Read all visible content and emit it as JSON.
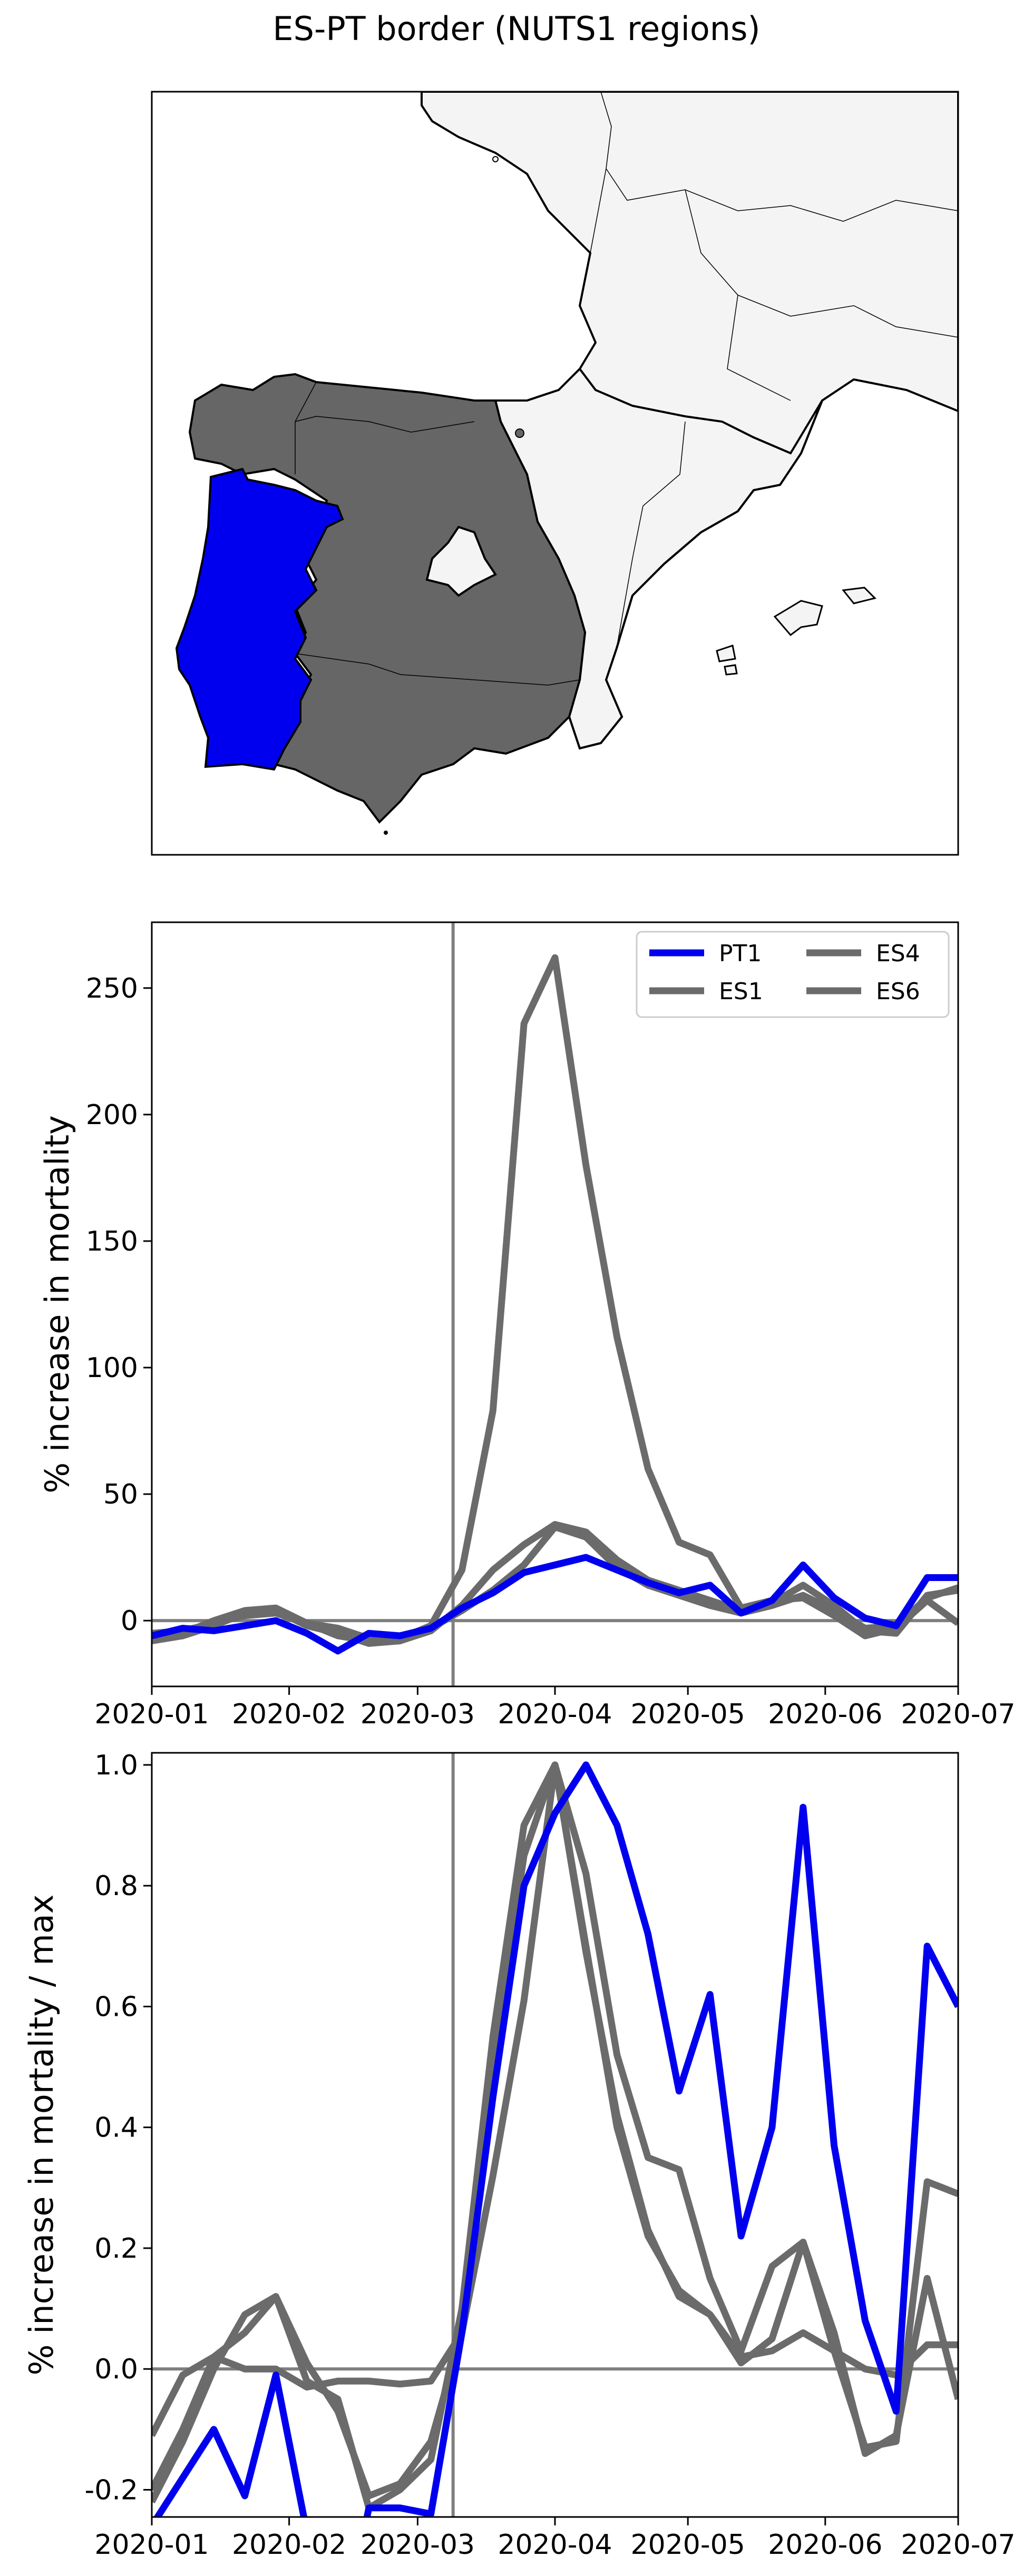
{
  "title": "ES-PT border (NUTS1 regions)",
  "colors": {
    "PT1": "#0000ee",
    "ES": "#6b6b6b",
    "land": "#f4f4f4",
    "border": "#000000"
  },
  "map": {
    "highlighted_regions": [
      "PT1"
    ],
    "comparison_regions": [
      "ES1",
      "ES4",
      "ES6"
    ]
  },
  "chart_data": [
    {
      "type": "line",
      "title": "",
      "ylabel": "% increase in mortality",
      "xlabel": "",
      "categories": [
        "2020-01",
        "2020-02",
        "2020-03",
        "2020-04",
        "2020-05",
        "2020-06",
        "2020-07"
      ],
      "xlim": [
        "2020-01-01",
        "2020-07-01"
      ],
      "ylim": [
        -26,
        276
      ],
      "yticks": [
        0,
        50,
        100,
        150,
        200,
        250
      ],
      "hline": 0,
      "vline": "2020-03-09",
      "grid": false,
      "legend_position": "top-right",
      "legend": [
        "PT1",
        "ES1",
        "ES4",
        "ES6"
      ],
      "x": [
        "2020-01-01",
        "2020-01-08",
        "2020-01-15",
        "2020-01-22",
        "2020-01-29",
        "2020-02-05",
        "2020-02-12",
        "2020-02-19",
        "2020-02-26",
        "2020-03-04",
        "2020-03-11",
        "2020-03-18",
        "2020-03-25",
        "2020-04-01",
        "2020-04-08",
        "2020-04-15",
        "2020-04-22",
        "2020-04-29",
        "2020-05-06",
        "2020-05-13",
        "2020-05-20",
        "2020-05-27",
        "2020-06-03",
        "2020-06-10",
        "2020-06-17",
        "2020-06-24",
        "2020-07-01"
      ],
      "series": [
        {
          "name": "ES1",
          "color": "#6b6b6b",
          "values": [
            -5,
            -4,
            -1,
            2,
            3,
            -1,
            -3,
            -7,
            -6,
            -3,
            4,
            12,
            22,
            37,
            33,
            21,
            14,
            10,
            6,
            3,
            6,
            10,
            4,
            -3,
            -2,
            9,
            13
          ]
        },
        {
          "name": "ES4",
          "color": "#6b6b6b",
          "values": [
            -8,
            -6,
            -2,
            3,
            4,
            -2,
            -5,
            -9,
            -8,
            -4,
            6,
            20,
            30,
            38,
            35,
            24,
            16,
            12,
            8,
            4,
            7,
            14,
            6,
            -4,
            -5,
            10,
            12
          ]
        },
        {
          "name": "ES6",
          "color": "#6b6b6b",
          "values": [
            -7,
            -5,
            0,
            4,
            5,
            -1,
            -6,
            -8,
            -7,
            -2,
            20,
            83,
            236,
            262,
            180,
            112,
            60,
            31,
            26,
            5,
            8,
            9,
            2,
            -6,
            -3,
            8,
            -1
          ]
        },
        {
          "name": "PT1",
          "color": "#0000ee",
          "values": [
            -6,
            -3,
            -4,
            -2,
            0,
            -5,
            -12,
            -5,
            -6,
            -3,
            5,
            11,
            19,
            22,
            25,
            20,
            15,
            11,
            14,
            3,
            8,
            22,
            9,
            1,
            -2,
            17,
            17
          ]
        }
      ]
    },
    {
      "type": "line",
      "title": "",
      "ylabel": "% increase in mortality / max",
      "xlabel": "",
      "categories": [
        "2020-01",
        "2020-02",
        "2020-03",
        "2020-04",
        "2020-05",
        "2020-06",
        "2020-07"
      ],
      "xlim": [
        "2020-01-01",
        "2020-07-01"
      ],
      "ylim": [
        -0.245,
        1.02
      ],
      "yticks": [
        -0.2,
        0.0,
        0.2,
        0.4,
        0.6,
        0.8,
        1.0
      ],
      "hline": 0,
      "vline": "2020-03-09",
      "grid": false,
      "x": [
        "2020-01-01",
        "2020-01-08",
        "2020-01-15",
        "2020-01-22",
        "2020-01-29",
        "2020-02-05",
        "2020-02-12",
        "2020-02-19",
        "2020-02-26",
        "2020-03-04",
        "2020-03-11",
        "2020-03-18",
        "2020-03-25",
        "2020-04-01",
        "2020-04-08",
        "2020-04-15",
        "2020-04-22",
        "2020-04-29",
        "2020-05-06",
        "2020-05-13",
        "2020-05-20",
        "2020-05-27",
        "2020-06-03",
        "2020-06-10",
        "2020-06-17",
        "2020-06-24",
        "2020-07-01"
      ],
      "series": [
        {
          "name": "ES1",
          "color": "#6b6b6b",
          "values": [
            -0.2,
            -0.1,
            0.02,
            0.06,
            0.12,
            -0.02,
            -0.05,
            -0.23,
            -0.2,
            -0.15,
            0.1,
            0.55,
            0.9,
            1.0,
            0.82,
            0.52,
            0.35,
            0.33,
            0.15,
            0.03,
            0.17,
            0.21,
            0.03,
            -0.13,
            -0.12,
            0.31,
            0.29
          ]
        },
        {
          "name": "ES4",
          "color": "#6b6b6b",
          "values": [
            -0.22,
            -0.12,
            0.0,
            0.09,
            0.12,
            0.01,
            -0.07,
            -0.21,
            -0.19,
            -0.12,
            0.06,
            0.5,
            0.85,
            1.0,
            0.7,
            0.4,
            0.22,
            0.13,
            0.09,
            0.01,
            0.05,
            0.21,
            0.06,
            -0.14,
            -0.11,
            0.15,
            -0.05
          ]
        },
        {
          "name": "ES6",
          "color": "#6b6b6b",
          "values": [
            -0.11,
            -0.01,
            0.02,
            0.0,
            0.0,
            -0.03,
            -0.02,
            -0.02,
            -0.025,
            -0.02,
            0.06,
            0.32,
            0.61,
            1.0,
            0.69,
            0.42,
            0.23,
            0.12,
            0.09,
            0.02,
            0.03,
            0.06,
            0.03,
            0.0,
            -0.01,
            0.04,
            0.04
          ]
        },
        {
          "name": "PT1",
          "color": "#0000ee",
          "values": [
            -0.26,
            -0.18,
            -0.1,
            -0.21,
            -0.01,
            -0.27,
            -0.48,
            -0.23,
            -0.23,
            -0.24,
            0.06,
            0.45,
            0.8,
            0.92,
            1.0,
            0.9,
            0.72,
            0.46,
            0.62,
            0.22,
            0.4,
            0.93,
            0.37,
            0.08,
            -0.07,
            0.7,
            0.6
          ]
        }
      ]
    }
  ]
}
